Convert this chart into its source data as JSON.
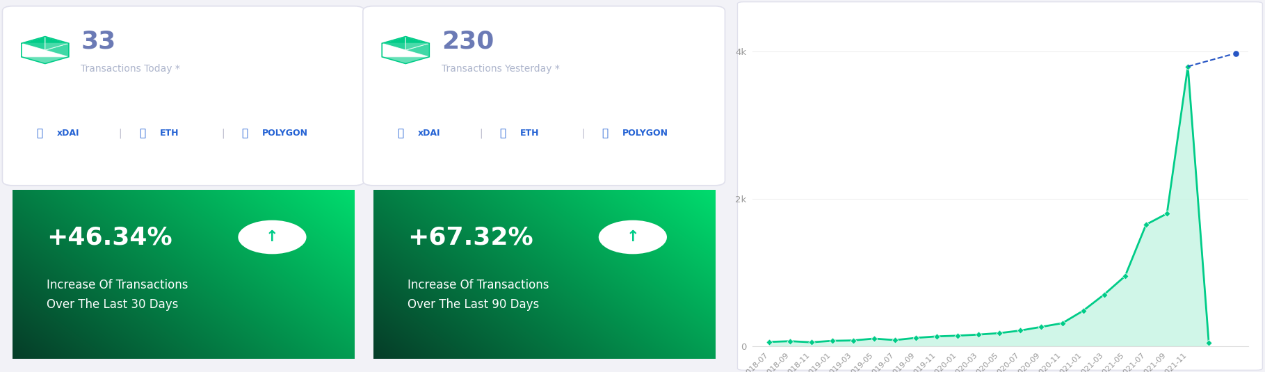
{
  "transactions_today": "33",
  "transactions_yesterday": "230",
  "label_today": "Transactions Today *",
  "label_yesterday": "Transactions Yesterday *",
  "links": [
    "xDAI",
    "ETH",
    "POLYGON"
  ],
  "pct_30": "+46.34%",
  "label_30": "Increase Of Transactions\nOver The Last 30 Days",
  "pct_90": "+67.32%",
  "label_90": "Increase Of Transactions\nOver The Last 90 Days",
  "card_bg": "#ffffff",
  "card_border": "#e0e0ec",
  "fig_bg": "#f2f2f7",
  "grad_dark": "#063d28",
  "grad_light": "#00e676",
  "link_color": "#2563d4",
  "number_color": "#6b7ab5",
  "label_color": "#adb5cc",
  "chart_bg": "#ffffff",
  "chart_line_color": "#00cc88",
  "chart_fill_color": "#c8f5e4",
  "chart_dot_color": "#2655c4",
  "x_labels": [
    "2018-07",
    "2018-09",
    "2018-11",
    "2019-01",
    "2019-03",
    "2019-05",
    "2019-07",
    "2019-09",
    "2019-11",
    "2020-01",
    "2020-03",
    "2020-05",
    "2020-07",
    "2020-09",
    "2020-11",
    "2021-01",
    "2021-03",
    "2021-05",
    "2021-07",
    "2021-09",
    "2021-11"
  ],
  "y_values": [
    55,
    65,
    50,
    70,
    75,
    100,
    80,
    110,
    130,
    140,
    155,
    175,
    210,
    260,
    310,
    480,
    700,
    950,
    1650,
    1800,
    3800,
    40
  ],
  "projection_value": 3980,
  "ylim": [
    0,
    4400
  ],
  "yticks": [
    0,
    2000,
    4000
  ],
  "ytick_labels": [
    "0",
    "2k",
    "4k"
  ]
}
